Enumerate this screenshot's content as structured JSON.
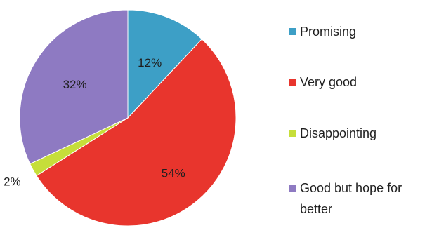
{
  "chart_data": {
    "type": "pie",
    "categories": [
      "Promising",
      "Very good",
      "Disappointing",
      "Good but hope for better"
    ],
    "values": [
      12,
      54,
      2,
      32
    ],
    "labels": [
      "12%",
      "54%",
      "2%",
      "32%"
    ],
    "colors": [
      "#3d9fc6",
      "#e8352d",
      "#c6de3a",
      "#8e7ac2"
    ],
    "start_angle_deg": -90,
    "direction": "clockwise",
    "legend": {
      "placement": "right",
      "items": [
        {
          "label": "Promising",
          "color": "#3d9fc6"
        },
        {
          "label": "Very good",
          "color": "#e8352d"
        },
        {
          "label": "Disappointing",
          "color": "#c6de3a"
        },
        {
          "label": "Good but hope for better",
          "color": "#8e7ac2"
        }
      ]
    }
  }
}
